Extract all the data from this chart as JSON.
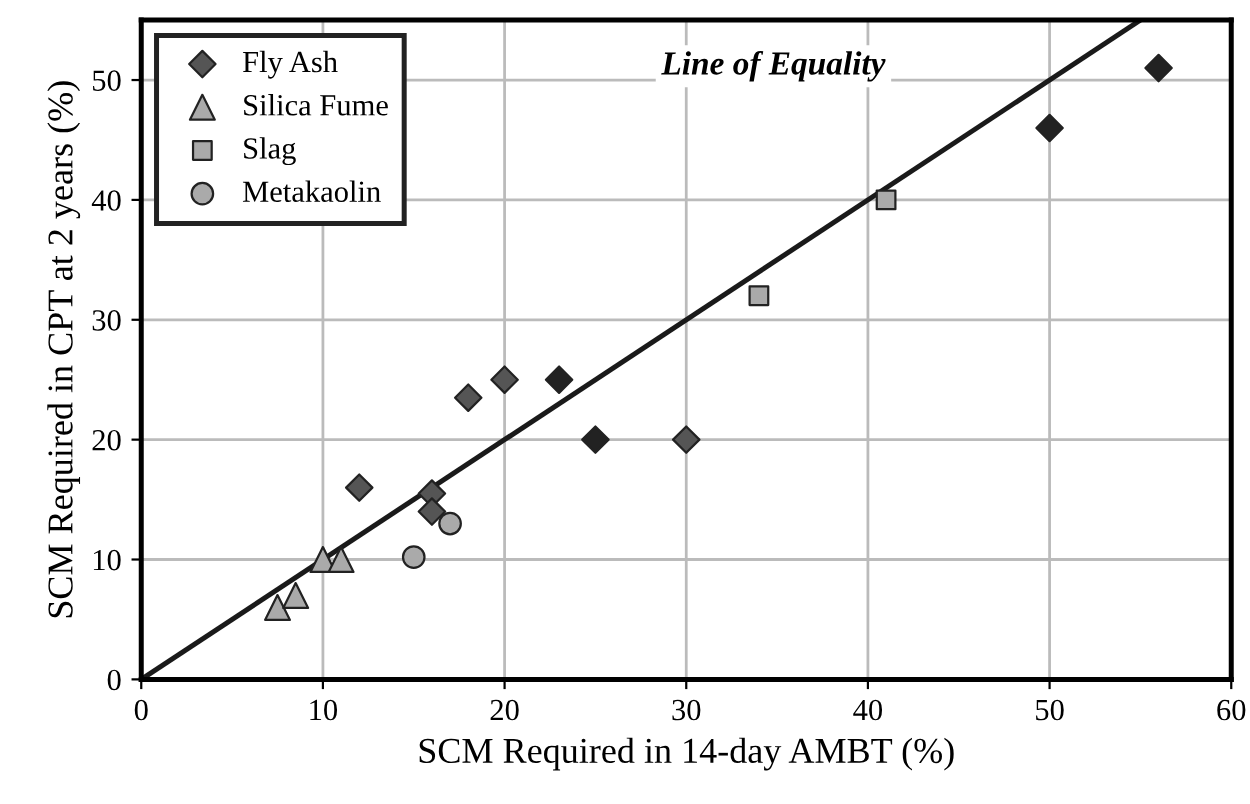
{
  "chart_data": {
    "type": "scatter",
    "xlabel": "SCM Required in 14-day AMBT (%)",
    "ylabel": "SCM Required in CPT at 2 years (%)",
    "xlim": [
      0,
      60
    ],
    "ylim": [
      0,
      55
    ],
    "xticks": [
      0,
      10,
      20,
      30,
      40,
      50,
      60
    ],
    "yticks": [
      0,
      10,
      20,
      30,
      40,
      50
    ],
    "grid": true,
    "legend": "top left",
    "annotations": [
      "Line of Equality"
    ],
    "series": [
      {
        "name": "Fly Ash",
        "marker": "diamond",
        "color": "#555555",
        "colors": [
          "#555555",
          "#555555",
          "#555555",
          "#555555",
          "#555555",
          "#222222",
          "#222222",
          "#555555",
          "#222222",
          "#222222"
        ],
        "x": [
          12,
          16,
          16,
          18,
          20,
          23,
          25,
          30,
          50,
          56
        ],
        "values": [
          16,
          15.5,
          14,
          23.5,
          25,
          25,
          20,
          20,
          46,
          51
        ]
      },
      {
        "name": "Silica Fume",
        "marker": "triangle",
        "color": "#aaaaaa",
        "x": [
          7.5,
          8.5,
          10,
          11
        ],
        "values": [
          6,
          7,
          10,
          10
        ]
      },
      {
        "name": "Slag",
        "marker": "square",
        "color": "#aaaaaa",
        "x": [
          34,
          41
        ],
        "values": [
          32,
          40
        ]
      },
      {
        "name": "Metakaolin",
        "marker": "circle",
        "color": "#aaaaaa",
        "x": [
          15,
          17
        ],
        "values": [
          10.2,
          13
        ]
      },
      {
        "type": "line",
        "color": "#1a1a1a",
        "x": [
          0,
          55
        ],
        "values": [
          0,
          55
        ]
      }
    ]
  }
}
